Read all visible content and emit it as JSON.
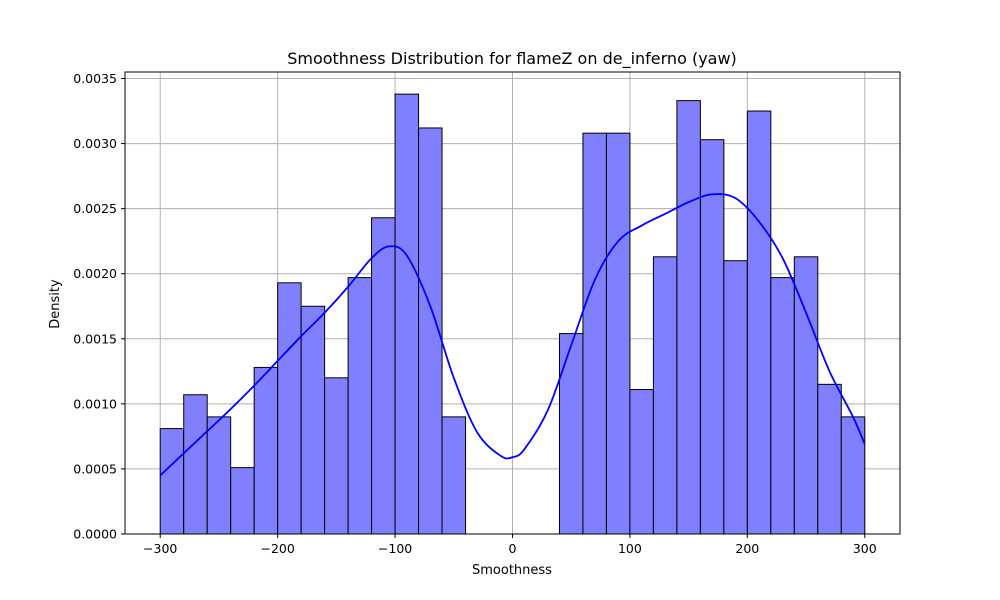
{
  "chart_data": {
    "type": "bar",
    "subtype": "histogram with KDE line",
    "title": "Smoothness Distribution for flameZ on de_inferno (yaw)",
    "xlabel": "Smoothness",
    "ylabel": "Density",
    "xlim": [
      -330,
      330
    ],
    "ylim": [
      0,
      0.00355
    ],
    "x_ticks": [
      -300,
      -200,
      -100,
      0,
      100,
      200,
      300
    ],
    "x_tick_labels": [
      "−300",
      "−200",
      "−100",
      "0",
      "100",
      "200",
      "300"
    ],
    "y_ticks": [
      0,
      0.0005,
      0.001,
      0.0015,
      0.002,
      0.0025,
      0.003,
      0.0035
    ],
    "y_tick_labels": [
      "0.0000",
      "0.0005",
      "0.0010",
      "0.0015",
      "0.0020",
      "0.0025",
      "0.0030",
      "0.0035"
    ],
    "grid": true,
    "bin_start": -300,
    "bin_width": 20,
    "bin_values": [
      0.00081,
      0.00107,
      0.0009,
      0.00051,
      0.00128,
      0.00193,
      0.00175,
      0.0012,
      0.00197,
      0.00243,
      0.00338,
      0.00312,
      0.0009,
      0,
      0,
      0,
      0,
      0.00154,
      0.00308,
      0.00308,
      0.00111,
      0.00213,
      0.00333,
      0.00303,
      0.0021,
      0.00325,
      0.00197,
      0.00213,
      0.00115,
      0.0009
    ],
    "kde": {
      "x": [
        -300,
        -280,
        -260,
        -240,
        -220,
        -200,
        -180,
        -160,
        -140,
        -120,
        -105,
        -90,
        -70,
        -50,
        -30,
        -10,
        0,
        10,
        30,
        50,
        70,
        90,
        110,
        130,
        150,
        170,
        190,
        210,
        230,
        250,
        270,
        290,
        300
      ],
      "y": [
        0.00045,
        0.00062,
        0.00079,
        0.00096,
        0.00114,
        0.00133,
        0.00152,
        0.0017,
        0.0019,
        0.00212,
        0.00221,
        0.00214,
        0.00175,
        0.0012,
        0.00078,
        0.0006,
        0.00059,
        0.00065,
        0.00095,
        0.00145,
        0.00195,
        0.00225,
        0.00237,
        0.00246,
        0.00255,
        0.00261,
        0.00258,
        0.0024,
        0.00212,
        0.0017,
        0.00125,
        0.0009,
        0.00069
      ]
    },
    "colors": {
      "bar_fill": "#8080ff",
      "bar_edge": "#000000",
      "kde_line": "#0000ff",
      "grid": "#b0b0b0"
    }
  }
}
